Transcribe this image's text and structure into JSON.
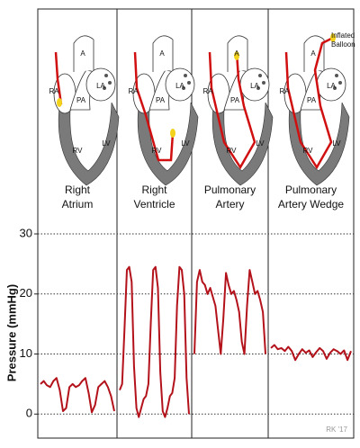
{
  "chart_data": {
    "type": "line",
    "ylabel": "Pressure (mmHg)",
    "ylim": [
      -4,
      31.5
    ],
    "yticks": [
      0,
      10,
      20,
      30
    ],
    "grid": true,
    "series": [
      {
        "color": "#b3121b",
        "values": [
          5,
          5.5,
          4.8,
          4.5,
          5.5,
          6,
          4,
          0.5,
          1,
          4.5,
          5,
          4.5,
          4.8,
          5.5,
          6,
          3.5,
          0.3,
          1.5,
          4.5,
          5,
          5.5,
          4.5,
          3,
          0.5
        ]
      },
      {
        "color": "#b3121b",
        "values": [
          4,
          5,
          14,
          24,
          24.5,
          22,
          8,
          1,
          -0.5,
          1,
          2.5,
          3,
          5,
          15,
          24,
          24.5,
          21,
          7,
          0.5,
          -0.5,
          1,
          3,
          3.5,
          6,
          18,
          24.5,
          24,
          20,
          6,
          0
        ]
      },
      {
        "color": "#b3121b",
        "values": [
          10,
          22,
          24,
          22,
          21.5,
          20,
          21,
          19.5,
          18,
          14,
          10,
          16,
          23.5,
          21.5,
          20,
          20.5,
          19,
          17,
          12,
          10,
          18,
          24,
          22,
          20,
          20.5,
          19,
          17,
          10
        ]
      },
      {
        "color": "#b3121b",
        "values": [
          11,
          11.5,
          10.8,
          11,
          10.5,
          11.2,
          10.5,
          9,
          10,
          10.8,
          10.2,
          10.6,
          9.5,
          10.3,
          11,
          10.5,
          9.2,
          10.2,
          10.8,
          10.5,
          10,
          10.6,
          9,
          10.5
        ]
      }
    ]
  },
  "panels": [
    {
      "label_lines": [
        "Right",
        "Atrium"
      ]
    },
    {
      "label_lines": [
        "Right",
        "Ventricle"
      ]
    },
    {
      "label_lines": [
        "Pulmonary",
        "Artery"
      ]
    },
    {
      "label_lines": [
        "Pulmonary",
        "Artery Wedge"
      ]
    }
  ],
  "heart_labels": [
    "A",
    "RA",
    "LA",
    "PA",
    "RV",
    "LV"
  ],
  "balloon_label_lines": [
    "Inflated",
    "Balloon"
  ],
  "signature": "RK '17"
}
